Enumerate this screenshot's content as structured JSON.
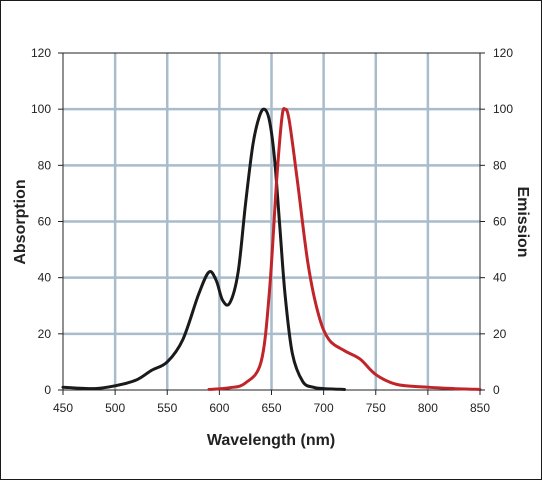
{
  "chart_data": {
    "type": "line",
    "title": "",
    "xlabel": "Wavelength (nm)",
    "ylabel_left": "Absorption",
    "ylabel_right": "Emission",
    "xlim": [
      450,
      850
    ],
    "ylim": [
      0,
      120
    ],
    "x_ticks": [
      "450",
      "500",
      "550",
      "600",
      "650",
      "700",
      "750",
      "800",
      "850"
    ],
    "y_ticks": [
      "0",
      "20",
      "40",
      "60",
      "80",
      "100",
      "120"
    ],
    "grid": true,
    "legend": "none",
    "series": [
      {
        "axis": "left",
        "color": "#1a1a1a",
        "points": [
          [
            450,
            1
          ],
          [
            480,
            0.5
          ],
          [
            500,
            1.5
          ],
          [
            520,
            3.5
          ],
          [
            535,
            7
          ],
          [
            550,
            10
          ],
          [
            565,
            18
          ],
          [
            580,
            34
          ],
          [
            590,
            42
          ],
          [
            597,
            39
          ],
          [
            603,
            32
          ],
          [
            610,
            31
          ],
          [
            618,
            42
          ],
          [
            625,
            66
          ],
          [
            632,
            87
          ],
          [
            638,
            97
          ],
          [
            643,
            100
          ],
          [
            648,
            96
          ],
          [
            653,
            82
          ],
          [
            658,
            58
          ],
          [
            663,
            34
          ],
          [
            670,
            13
          ],
          [
            680,
            3
          ],
          [
            690,
            1
          ],
          [
            700,
            0.5
          ],
          [
            720,
            0.2
          ]
        ]
      },
      {
        "axis": "right",
        "color": "#c0252a",
        "points": [
          [
            590,
            0.2
          ],
          [
            610,
            0.8
          ],
          [
            625,
            2.5
          ],
          [
            640,
            10
          ],
          [
            648,
            35
          ],
          [
            655,
            75
          ],
          [
            660,
            97
          ],
          [
            663,
            100
          ],
          [
            667,
            96
          ],
          [
            675,
            74
          ],
          [
            685,
            45
          ],
          [
            695,
            27
          ],
          [
            705,
            18
          ],
          [
            720,
            14
          ],
          [
            735,
            11
          ],
          [
            750,
            5.5
          ],
          [
            770,
            2
          ],
          [
            800,
            1
          ],
          [
            825,
            0.5
          ],
          [
            850,
            0.2
          ]
        ]
      }
    ]
  }
}
